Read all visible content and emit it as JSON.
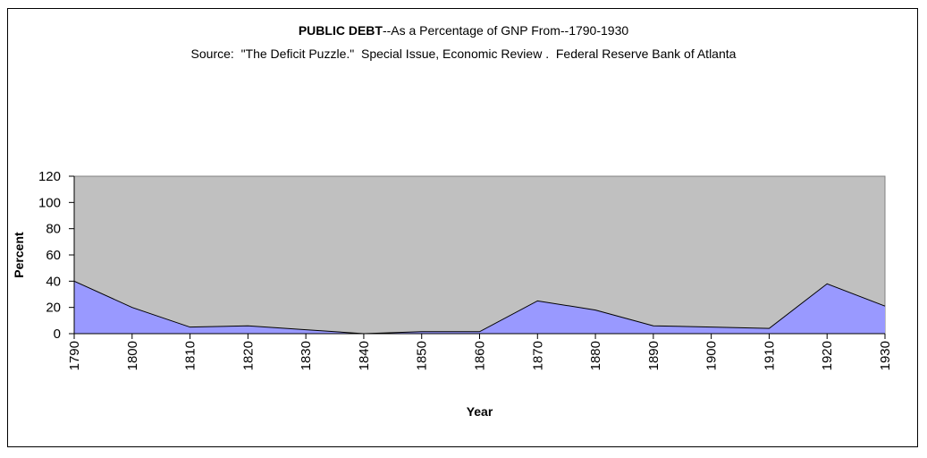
{
  "chart_data": {
    "type": "area",
    "title_bold": "PUBLIC DEBT",
    "title_rest": "--As a Percentage of GNP From--1790-1930",
    "subtitle": "Source:  \"The Deficit Puzzle.\"  Special Issue, Economic Review .  Federal Reserve Bank of Atlanta",
    "xlabel": "Year",
    "ylabel": "Percent",
    "x": [
      1790,
      1800,
      1810,
      1820,
      1830,
      1840,
      1850,
      1860,
      1870,
      1880,
      1890,
      1900,
      1910,
      1920,
      1930
    ],
    "values": [
      40,
      20,
      5,
      6,
      3,
      0,
      1.5,
      1.5,
      25,
      18,
      6,
      5,
      4,
      38,
      21
    ],
    "ylim": [
      0,
      120
    ],
    "yticks": [
      0,
      20,
      40,
      60,
      80,
      100,
      120
    ],
    "grid": false,
    "legend": "none",
    "colors": {
      "area_fill": "#9999ff",
      "plot_background": "#c0c0c0",
      "line": "#000000"
    }
  }
}
